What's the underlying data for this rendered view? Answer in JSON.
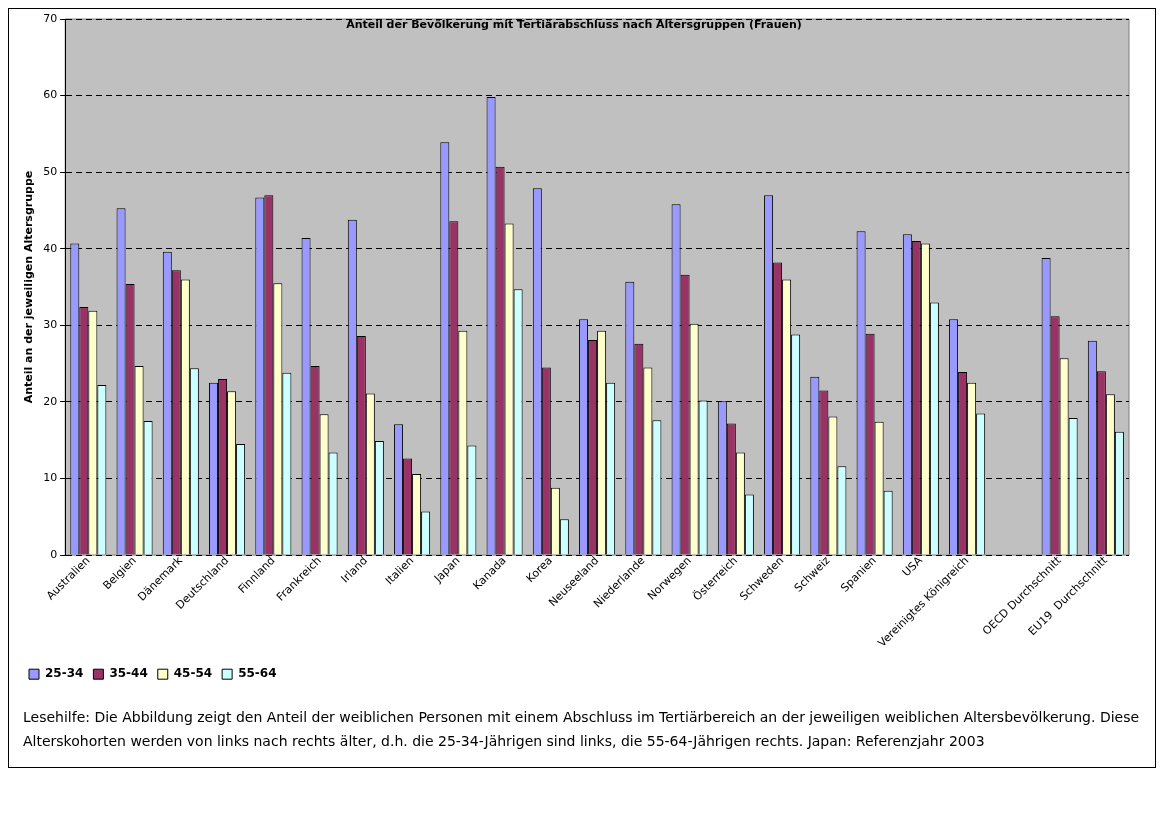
{
  "chart_data": {
    "type": "bar",
    "title": "Anteil der Bevölkerung mit Tertiärabschluss nach Altersgruppen (Frauen)",
    "ylabel": "Anteil an der jeweiligen Altersgruppe",
    "categories": [
      "Australien",
      "Belgien",
      "Dänemark",
      "Deutschland",
      "Finnland",
      "Frankreich",
      "Irland",
      "Italien",
      "Japan",
      "Kanada",
      "Korea",
      "Neuseeland",
      "Niederlande",
      "Norwegen",
      "Österreich",
      "Schweden",
      "Schweiz",
      "Spanien",
      "USA",
      "Vereinigtes Königreich",
      null,
      "OECD Durchschnitt",
      "EU19  Durchschnitt"
    ],
    "series": [
      {
        "name": "25-34",
        "color": "#9999ff",
        "values": [
          40.7,
          45.3,
          39.6,
          22.5,
          46.7,
          41.4,
          43.8,
          17.1,
          53.9,
          59.8,
          47.9,
          30.8,
          35.7,
          45.8,
          20.1,
          47.0,
          23.3,
          42.3,
          41.9,
          30.8,
          null,
          38.8,
          28.0
        ]
      },
      {
        "name": "35-44",
        "color": "#993366",
        "values": [
          32.4,
          35.4,
          37.2,
          23.0,
          47.0,
          24.7,
          28.6,
          12.6,
          43.6,
          50.7,
          24.5,
          28.1,
          27.6,
          36.6,
          17.2,
          38.2,
          21.5,
          28.9,
          41.0,
          23.9,
          null,
          31.2,
          24.0
        ]
      },
      {
        "name": "45-54",
        "color": "#ffffcc",
        "values": [
          31.9,
          24.7,
          36.0,
          21.4,
          35.5,
          18.4,
          21.1,
          10.6,
          29.3,
          43.3,
          8.8,
          29.3,
          24.5,
          30.2,
          13.4,
          36.0,
          18.1,
          17.4,
          40.7,
          22.5,
          null,
          25.7,
          21.0
        ]
      },
      {
        "name": "55-64",
        "color": "#ccffff",
        "values": [
          22.2,
          17.5,
          24.4,
          14.5,
          23.8,
          13.4,
          14.9,
          5.7,
          14.3,
          34.7,
          4.7,
          22.5,
          17.6,
          20.2,
          7.9,
          28.8,
          11.6,
          8.4,
          33.0,
          18.5,
          null,
          17.9,
          16.1
        ]
      }
    ],
    "ylim": [
      0,
      70
    ],
    "yticks": [
      0,
      10,
      20,
      30,
      40,
      50,
      60,
      70
    ],
    "grid": "y",
    "legend": "bottom left",
    "annotations": [
      "Lesehilfe: Die Abbildung zeigt den Anteil der weiblichen Personen mit einem Abschluss im Tertiärbereich an der jeweiligen weiblichen Altersbevölkerung. Diese Alterskohorten werden von links nach rechts älter, d.h. die 25-34-Jährigen sind links, die 55-64-Jährigen rechts. Japan: Referenzjahr 2003"
    ]
  }
}
